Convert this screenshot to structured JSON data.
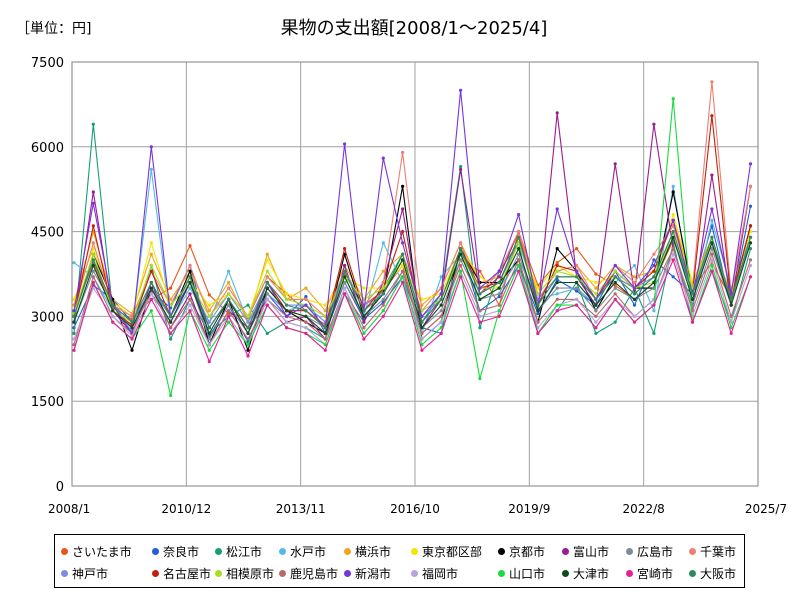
{
  "chart_data": {
    "type": "line",
    "title": "果物の支出額[2008/1～2025/4]",
    "unit_label": "［単位：円]",
    "ylim": [
      0,
      7500
    ],
    "yticks": [
      "0",
      "1500",
      "3000",
      "4500",
      "6000",
      "7500"
    ],
    "xticks": [
      "2008/1",
      "2010/12",
      "2013/11",
      "2016/10",
      "2019/9",
      "2022/8",
      "2025/7"
    ],
    "grid": true,
    "legend_position": "bottom",
    "series": [
      {
        "name": "さいたま市",
        "color": "#e8571a",
        "values": [
          3050,
          3950,
          3150,
          2950,
          3300,
          3500,
          4250,
          3380,
          3050,
          2980,
          3700,
          3400,
          3100,
          2850,
          3750,
          3200,
          3450,
          3900,
          2700,
          3000,
          4000,
          3800,
          3200,
          4500,
          3550,
          3950,
          4200,
          3750,
          3550,
          3300,
          3600,
          4350,
          3500,
          3950,
          3300,
          4300
        ]
      },
      {
        "name": "奈良市",
        "color": "#1f5fd8",
        "values": [
          2800,
          3550,
          3300,
          2900,
          3450,
          3150,
          3900,
          2650,
          3200,
          2550,
          3400,
          3000,
          3350,
          2700,
          3600,
          2950,
          3250,
          3700,
          2800,
          2700,
          4200,
          3100,
          3350,
          3900,
          3050,
          3650,
          3450,
          3200,
          3800,
          3200,
          4000,
          3700,
          3400,
          4600,
          3200,
          4950
        ]
      },
      {
        "name": "松江市",
        "color": "#13a076",
        "values": [
          2700,
          6400,
          3100,
          2800,
          3900,
          2600,
          3300,
          2700,
          3000,
          3200,
          2700,
          2900,
          2800,
          2600,
          3400,
          2900,
          3500,
          4100,
          2900,
          3400,
          5650,
          2800,
          3800,
          4300,
          2700,
          3100,
          3600,
          2700,
          2900,
          3500,
          2700,
          4300,
          2900,
          3800,
          2900,
          4200
        ]
      },
      {
        "name": "水戸市",
        "color": "#56b8e8",
        "values": [
          3950,
          3700,
          3100,
          2750,
          5600,
          2900,
          3500,
          2900,
          3800,
          2900,
          3400,
          3100,
          3200,
          2900,
          3700,
          3000,
          4300,
          3600,
          2700,
          3700,
          4100,
          3300,
          3500,
          4000,
          3300,
          3400,
          3500,
          3200,
          3600,
          3900,
          3100,
          5300,
          3200,
          4700,
          3500,
          4400
        ]
      },
      {
        "name": "横浜市",
        "color": "#f0a31e",
        "values": [
          3200,
          4500,
          3300,
          3050,
          4100,
          3300,
          3800,
          3100,
          3600,
          2900,
          4100,
          3300,
          3500,
          3100,
          3900,
          3300,
          3800,
          4100,
          3200,
          3500,
          4300,
          3600,
          3700,
          4500,
          3400,
          3800,
          3900,
          3500,
          3900,
          3700,
          3800,
          4700,
          3600,
          4400,
          3300,
          4600
        ]
      },
      {
        "name": "東京都区部",
        "color": "#f5e600",
        "values": [
          3300,
          4200,
          3250,
          3000,
          4300,
          3200,
          3600,
          3200,
          3400,
          3000,
          4000,
          3400,
          3300,
          3200,
          3700,
          3500,
          3500,
          3900,
          3300,
          3400,
          4200,
          3700,
          3500,
          4300,
          3500,
          3900,
          3700,
          3600,
          3700,
          3400,
          3700,
          4800,
          3600,
          4300,
          3400,
          4500
        ]
      },
      {
        "name": "京都市",
        "color": "#000000",
        "values": [
          3000,
          4100,
          3300,
          2400,
          3500,
          3000,
          3800,
          2500,
          3300,
          2400,
          3500,
          3100,
          2900,
          2700,
          4100,
          3000,
          3400,
          5300,
          2600,
          2900,
          4200,
          3600,
          3600,
          4000,
          2900,
          4200,
          3800,
          3100,
          3700,
          3500,
          3500,
          5200,
          3400,
          4300,
          3300,
          4600
        ]
      },
      {
        "name": "富山市",
        "color": "#9b1b90",
        "values": [
          2900,
          5200,
          3100,
          2700,
          3600,
          2800,
          3400,
          2500,
          3100,
          2800,
          3300,
          2900,
          3000,
          2600,
          3900,
          2900,
          3600,
          4900,
          2800,
          3300,
          5600,
          3400,
          3700,
          4500,
          3100,
          6600,
          3700,
          3200,
          5700,
          3400,
          6400,
          4200,
          3100,
          5500,
          3200,
          5300
        ]
      },
      {
        "name": "広島市",
        "color": "#7f8b99",
        "values": [
          2900,
          3800,
          3200,
          2800,
          3400,
          2900,
          3600,
          2600,
          3200,
          2700,
          3400,
          3100,
          3000,
          2800,
          3600,
          3000,
          3300,
          3800,
          2800,
          3100,
          4000,
          3300,
          3400,
          4100,
          3100,
          3500,
          3500,
          3100,
          3500,
          3300,
          3500,
          4200,
          3200,
          4200,
          3200,
          4400
        ]
      },
      {
        "name": "千葉市",
        "color": "#ee7f72",
        "values": [
          3100,
          4300,
          3200,
          3000,
          3800,
          3200,
          3900,
          3000,
          3500,
          3000,
          3700,
          3300,
          3300,
          3000,
          3800,
          3200,
          3600,
          5900,
          3100,
          3500,
          4300,
          3400,
          3800,
          4500,
          3300,
          3800,
          3900,
          3300,
          3900,
          3600,
          4100,
          4600,
          3500,
          7150,
          3400,
          5300
        ]
      },
      {
        "name": "神戸市",
        "color": "#7c8ce0",
        "values": [
          3000,
          4000,
          3200,
          2900,
          3500,
          3000,
          3600,
          2900,
          3400,
          2900,
          3600,
          3200,
          3200,
          2900,
          3800,
          3200,
          3400,
          4000,
          3000,
          3300,
          4200,
          3400,
          3600,
          4300,
          3300,
          3700,
          3700,
          3300,
          3700,
          3500,
          3700,
          4400,
          3400,
          4300,
          3300,
          4400
        ]
      },
      {
        "name": "名古屋市",
        "color": "#c0200c",
        "values": [
          3000,
          4600,
          3100,
          2850,
          3800,
          3000,
          3700,
          2800,
          3300,
          2800,
          3600,
          3100,
          3100,
          2800,
          4200,
          3100,
          3500,
          4500,
          2900,
          3300,
          4200,
          3500,
          3600,
          4400,
          3200,
          3900,
          3800,
          3300,
          3800,
          3500,
          3800,
          4700,
          3400,
          6550,
          3300,
          4600
        ]
      },
      {
        "name": "相模原市",
        "color": "#a6e01e",
        "values": [
          3050,
          4100,
          3100,
          2900,
          3900,
          3200,
          3600,
          3000,
          3400,
          3000,
          3800,
          3300,
          3200,
          3000,
          3700,
          3300,
          3500,
          4000,
          3100,
          3300,
          4100,
          3500,
          3500,
          4300,
          3400,
          3800,
          3700,
          3400,
          3800,
          3500,
          3600,
          4500,
          3500,
          4400,
          3300,
          4400
        ]
      },
      {
        "name": "鹿児島市",
        "color": "#b86a6a",
        "values": [
          2500,
          3700,
          3000,
          2700,
          3500,
          2800,
          3300,
          2500,
          3100,
          2600,
          3300,
          3000,
          2900,
          2600,
          3500,
          2800,
          3200,
          3800,
          2700,
          3000,
          3900,
          3100,
          3200,
          4000,
          2900,
          3300,
          3300,
          3000,
          3400,
          3000,
          3300,
          4200,
          3100,
          4100,
          3000,
          4000
        ]
      },
      {
        "name": "新潟市",
        "color": "#7834d8",
        "values": [
          3100,
          5000,
          3200,
          2700,
          6000,
          3000,
          3600,
          2800,
          3300,
          2700,
          3600,
          3000,
          3200,
          2800,
          6050,
          3100,
          5800,
          4300,
          3000,
          3400,
          7000,
          3500,
          3800,
          4800,
          3200,
          4900,
          3800,
          3300,
          3900,
          3500,
          3900,
          4700,
          3400,
          4900,
          3400,
          5700
        ]
      },
      {
        "name": "福岡市",
        "color": "#b8a3db",
        "values": [
          2600,
          3500,
          3000,
          2650,
          3400,
          2700,
          3200,
          2500,
          3000,
          2500,
          3300,
          2900,
          2800,
          2500,
          3500,
          2700,
          3100,
          3700,
          2600,
          2900,
          3800,
          3000,
          3100,
          3900,
          2800,
          3200,
          3300,
          2900,
          3300,
          3000,
          3300,
          4100,
          3000,
          4000,
          2900,
          3900
        ]
      },
      {
        "name": "山口市",
        "color": "#19dc3c",
        "values": [
          2400,
          3600,
          2900,
          2600,
          3100,
          1600,
          3100,
          2400,
          2900,
          2500,
          3200,
          2800,
          2700,
          2500,
          3400,
          2700,
          3100,
          3700,
          2500,
          2800,
          3800,
          1900,
          3100,
          3900,
          2700,
          3200,
          3200,
          2800,
          3300,
          2900,
          3200,
          6850,
          2900,
          3900,
          2800,
          3700
        ]
      },
      {
        "name": "大津市",
        "color": "#0e4a1c",
        "values": [
          2900,
          3900,
          3100,
          2800,
          3500,
          2900,
          3600,
          2700,
          3300,
          2700,
          3500,
          3100,
          3000,
          2700,
          3700,
          3000,
          3400,
          4000,
          2800,
          3200,
          4100,
          3300,
          3500,
          4200,
          3100,
          3600,
          3600,
          3200,
          3600,
          3300,
          3600,
          4400,
          3300,
          4300,
          3200,
          4300
        ]
      },
      {
        "name": "宮崎市",
        "color": "#e81e9a",
        "values": [
          2400,
          3600,
          2900,
          2600,
          3300,
          2700,
          3100,
          2200,
          3000,
          2300,
          3200,
          2800,
          2700,
          2400,
          3400,
          2600,
          3000,
          3600,
          2400,
          2700,
          3700,
          2900,
          3000,
          3800,
          2700,
          3100,
          3200,
          2800,
          3300,
          2900,
          3200,
          4000,
          2900,
          3800,
          2700,
          3700
        ]
      },
      {
        "name": "大阪市",
        "color": "#2f8a5e",
        "values": [
          3000,
          4000,
          3200,
          2900,
          3600,
          3000,
          3700,
          2800,
          3300,
          2800,
          3600,
          3200,
          3100,
          2800,
          3800,
          3100,
          3400,
          4100,
          2900,
          3300,
          4200,
          3400,
          3600,
          4400,
          3200,
          3700,
          3700,
          3300,
          3700,
          3400,
          3700,
          4500,
          3400,
          4400,
          3300,
          4400
        ]
      }
    ]
  }
}
